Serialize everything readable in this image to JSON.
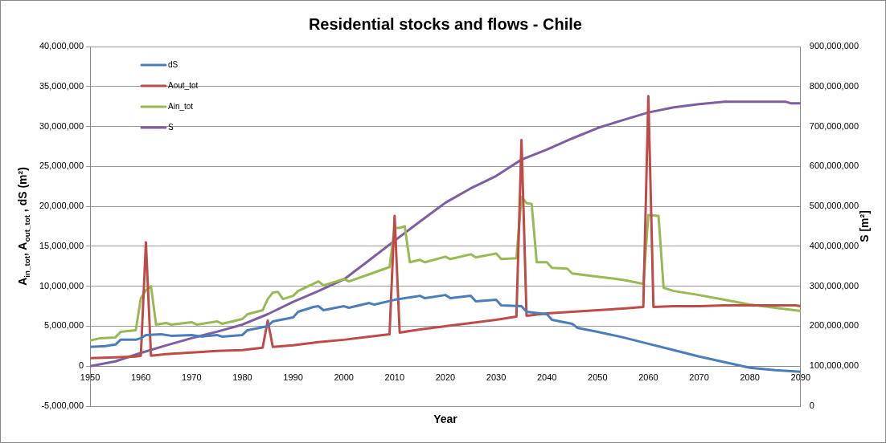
{
  "chart_data": {
    "type": "line",
    "title": "Residential stocks and flows - Chile",
    "xlabel": "Year",
    "ylabel": "A$_{in_tot}$, A$_{out_tot}$ , dS (m²)",
    "y2label": "S [m²]",
    "xlim": [
      1950,
      2090
    ],
    "xticks": [
      1950,
      1960,
      1970,
      1980,
      1990,
      2000,
      2010,
      2020,
      2030,
      2040,
      2050,
      2060,
      2070,
      2080,
      2090
    ],
    "ylim": [
      -5000000,
      40000000
    ],
    "yticks": [
      {
        "value": -5000000,
        "label": "-5,000,000"
      },
      0,
      {
        "value": 5000000,
        "label": "5,000,000"
      },
      {
        "value": 10000000,
        "label": "10,000,000"
      },
      {
        "value": 15000000,
        "label": "15,000,000"
      },
      {
        "value": 20000000,
        "label": "20,000,000"
      },
      {
        "value": 25000000,
        "label": "25,000,000"
      },
      {
        "value": 30000000,
        "label": "30,000,000"
      },
      {
        "value": 35000000,
        "label": "35,000,000"
      },
      {
        "value": 40000000,
        "label": "40,000,000"
      }
    ],
    "y2lim": [
      0,
      900000000
    ],
    "y2ticks": [
      0,
      {
        "value": 100000000,
        "label": "100,000,000"
      },
      {
        "value": 200000000,
        "label": "200,000,000"
      },
      {
        "value": 300000000,
        "label": "300,000,000"
      },
      {
        "value": 400000000,
        "label": "400,000,000"
      },
      {
        "value": 500000000,
        "label": "500,000,000"
      },
      {
        "value": 600000000,
        "label": "600,000,000"
      },
      {
        "value": 700000000,
        "label": "700,000,000"
      },
      {
        "value": 800000000,
        "label": "800,000,000"
      },
      {
        "value": 900000000,
        "label": "900,000,000"
      }
    ],
    "grid": "y",
    "legend": "top left",
    "marker": "none",
    "line_style": "solid",
    "series": [
      {
        "name": "dS",
        "color": "#4a7ebb",
        "x": [
          1950,
          1953,
          1955,
          1956,
          1959,
          1960,
          1961,
          1964,
          1966,
          1970,
          1972,
          1975,
          1976,
          1980,
          1981,
          1985,
          1986,
          1990,
          1991,
          1994,
          1995,
          1996,
          2000,
          2001,
          2005,
          2006,
          2010,
          2015,
          2016,
          2020,
          2021,
          2025,
          2026,
          2030,
          2031,
          2035,
          2036,
          2040,
          2041,
          2045,
          2046,
          2050,
          2055,
          2060,
          2065,
          2070,
          2075,
          2080,
          2085,
          2090
        ],
        "values": [
          2400000,
          2500000,
          2700000,
          3300000,
          3300000,
          3500000,
          3900000,
          4000000,
          3800000,
          3900000,
          3700000,
          3900000,
          3700000,
          3900000,
          4500000,
          5000000,
          5600000,
          6100000,
          6800000,
          7400000,
          7500000,
          7000000,
          7500000,
          7300000,
          7900000,
          7700000,
          8300000,
          8800000,
          8500000,
          8900000,
          8500000,
          8800000,
          8100000,
          8300000,
          7600000,
          7500000,
          6800000,
          6500000,
          5800000,
          5300000,
          4800000,
          4300000,
          3600000,
          2800000,
          2000000,
          1200000,
          500000,
          -200000,
          -500000,
          -700000
        ]
      },
      {
        "name": "Aout_tot",
        "color": "#be4b48",
        "x": [
          1950,
          1955,
          1959,
          1960,
          1961,
          1962,
          1965,
          1970,
          1975,
          1980,
          1984,
          1985,
          1986,
          1990,
          1995,
          2000,
          2005,
          2009,
          2010,
          2011,
          2015,
          2020,
          2025,
          2030,
          2034,
          2035,
          2036,
          2040,
          2045,
          2050,
          2055,
          2059,
          2060,
          2061,
          2065,
          2070,
          2075,
          2089,
          2090
        ],
        "values": [
          1000000,
          1100000,
          1200000,
          1300000,
          15500000,
          1300000,
          1500000,
          1700000,
          1900000,
          2000000,
          2300000,
          5700000,
          2400000,
          2600000,
          3000000,
          3300000,
          3700000,
          4000000,
          18800000,
          4200000,
          4600000,
          5000000,
          5400000,
          5800000,
          6200000,
          28300000,
          6300000,
          6600000,
          6800000,
          7000000,
          7200000,
          7400000,
          33800000,
          7400000,
          7500000,
          7500000,
          7600000,
          7600000,
          7500000
        ]
      },
      {
        "name": "Ain_tot",
        "color": "#98b954",
        "x": [
          1950,
          1952,
          1955,
          1956,
          1959,
          1960,
          1961,
          1962,
          1963,
          1965,
          1966,
          1970,
          1971,
          1975,
          1976,
          1980,
          1981,
          1984,
          1985,
          1986,
          1987,
          1988,
          1990,
          1991,
          1995,
          1996,
          2000,
          2001,
          2005,
          2009,
          2010,
          2011,
          2012,
          2013,
          2015,
          2016,
          2020,
          2021,
          2025,
          2026,
          2030,
          2031,
          2034,
          2035,
          2036,
          2037,
          2038,
          2040,
          2041,
          2044,
          2045,
          2050,
          2055,
          2059,
          2060,
          2062,
          2063,
          2065,
          2070,
          2075,
          2080,
          2085,
          2090
        ],
        "values": [
          3200000,
          3500000,
          3600000,
          4300000,
          4500000,
          8500000,
          9500000,
          10000000,
          5200000,
          5400000,
          5200000,
          5500000,
          5200000,
          5600000,
          5300000,
          5900000,
          6500000,
          7000000,
          8400000,
          9200000,
          9300000,
          8400000,
          8800000,
          9400000,
          10600000,
          10100000,
          10900000,
          10600000,
          11500000,
          12400000,
          17300000,
          17300000,
          17500000,
          13000000,
          13300000,
          13000000,
          13700000,
          13400000,
          14000000,
          13600000,
          14100000,
          13400000,
          13500000,
          21200000,
          20400000,
          20300000,
          13000000,
          13000000,
          12300000,
          12200000,
          11600000,
          11200000,
          10800000,
          10300000,
          18900000,
          18800000,
          9800000,
          9400000,
          8900000,
          8300000,
          7700000,
          7300000,
          6900000
        ]
      },
      {
        "name": "S",
        "color": "#7d5fa0",
        "axis": "y2",
        "x": [
          1950,
          1955,
          1960,
          1965,
          1970,
          1975,
          1980,
          1985,
          1990,
          1995,
          2000,
          2005,
          2010,
          2015,
          2020,
          2025,
          2030,
          2035,
          2040,
          2045,
          2050,
          2055,
          2060,
          2065,
          2070,
          2075,
          2087,
          2088,
          2090
        ],
        "values": [
          100000000,
          112000000,
          133000000,
          152000000,
          170000000,
          186000000,
          204000000,
          230000000,
          261000000,
          288000000,
          317000000,
          365000000,
          414000000,
          462000000,
          509000000,
          545000000,
          576000000,
          617000000,
          642000000,
          670000000,
          696000000,
          716000000,
          735000000,
          748000000,
          756000000,
          762000000,
          762000000,
          758000000,
          758000000
        ]
      }
    ]
  }
}
